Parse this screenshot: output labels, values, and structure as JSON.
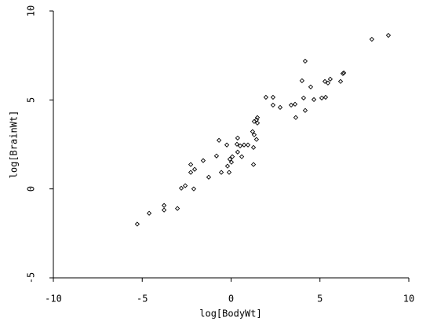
{
  "chart_data": {
    "type": "scatter",
    "xlabel": "log[BodyWt]",
    "ylabel": "log[BrainWt]",
    "xlim": [
      -10,
      10
    ],
    "ylim": [
      -5,
      10
    ],
    "xticks": [
      -10,
      -5,
      0,
      5,
      10
    ],
    "yticks": [
      -5,
      0,
      5,
      10
    ],
    "color": "#000000",
    "x": [
      -5.28,
      -4.61,
      -3.77,
      -3.77,
      -3.02,
      -2.8,
      -2.58,
      -2.27,
      -2.27,
      -2.05,
      -2.1,
      -1.57,
      -1.26,
      -0.82,
      -0.68,
      -0.55,
      -0.24,
      -0.2,
      -0.11,
      -0.07,
      0.07,
      0.02,
      0.33,
      0.37,
      0.37,
      0.51,
      0.6,
      0.73,
      0.95,
      1.21,
      1.3,
      1.26,
      1.26,
      1.3,
      1.43,
      1.48,
      1.48,
      1.43,
      1.96,
      2.36,
      2.36,
      2.76,
      3.38,
      3.6,
      3.64,
      3.99,
      4.08,
      4.17,
      4.17,
      4.48,
      4.66,
      5.1,
      5.32,
      5.28,
      5.45,
      5.58,
      6.16,
      6.29,
      6.34,
      7.92,
      8.85
    ],
    "y": [
      -1.98,
      -1.37,
      -0.93,
      -1.19,
      -1.1,
      0.04,
      0.18,
      1.37,
      0.93,
      1.1,
      0,
      1.59,
      0.66,
      1.85,
      2.73,
      0.93,
      2.47,
      1.28,
      0.93,
      1.67,
      1.81,
      1.5,
      2.51,
      2.86,
      2.07,
      2.42,
      1.81,
      2.47,
      2.47,
      3.22,
      3.04,
      2.33,
      1.37,
      3.79,
      2.78,
      3.7,
      4.01,
      3.88,
      5.15,
      4.71,
      5.15,
      4.58,
      4.71,
      4.76,
      4.01,
      6.08,
      5.11,
      4.41,
      7.18,
      5.73,
      5.02,
      5.11,
      5.15,
      6.04,
      5.95,
      6.17,
      6.04,
      6.48,
      6.52,
      8.41,
      8.63
    ]
  }
}
